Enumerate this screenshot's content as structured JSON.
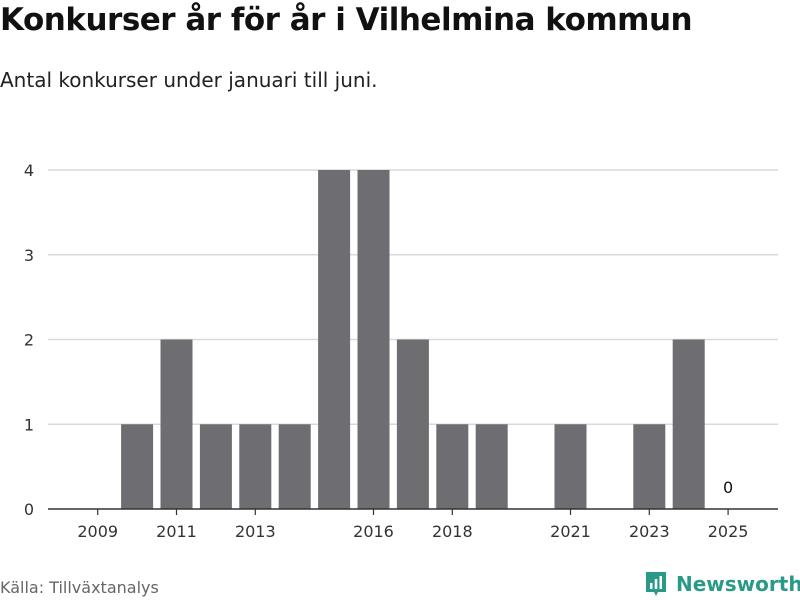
{
  "header": {
    "title": "Konkurser år för år i Vilhelmina kommun",
    "subtitle": "Antal konkurser under januari till juni."
  },
  "footer": {
    "source": "Källa: Tillväxtanalys",
    "brand": "Newsworthy",
    "brand_icon": "bar-chart-logo-icon"
  },
  "colors": {
    "bar": "#6e6d72",
    "grid": "#d9d9d9",
    "axis": "#333333",
    "brand": "#2a9a88"
  },
  "chart_data": {
    "type": "bar",
    "categories": [
      "2009",
      "2010",
      "2011",
      "2012",
      "2013",
      "2014",
      "2015",
      "2016",
      "2017",
      "2018",
      "2019",
      "2020",
      "2021",
      "2022",
      "2023",
      "2024",
      "2025"
    ],
    "values": [
      0,
      1,
      2,
      1,
      1,
      1,
      4,
      4,
      2,
      1,
      1,
      0,
      1,
      0,
      1,
      2,
      0
    ],
    "tick_labels": [
      "2009",
      "2011",
      "2013",
      "2016",
      "2018",
      "2021",
      "2023",
      "2025"
    ],
    "yticks": [
      0,
      1,
      2,
      3,
      4
    ],
    "data_labels": [
      {
        "category": "2025",
        "text": "0"
      }
    ],
    "ylim": [
      0,
      4
    ],
    "xlabel": "",
    "ylabel": "",
    "grid": true,
    "legend": "none"
  }
}
